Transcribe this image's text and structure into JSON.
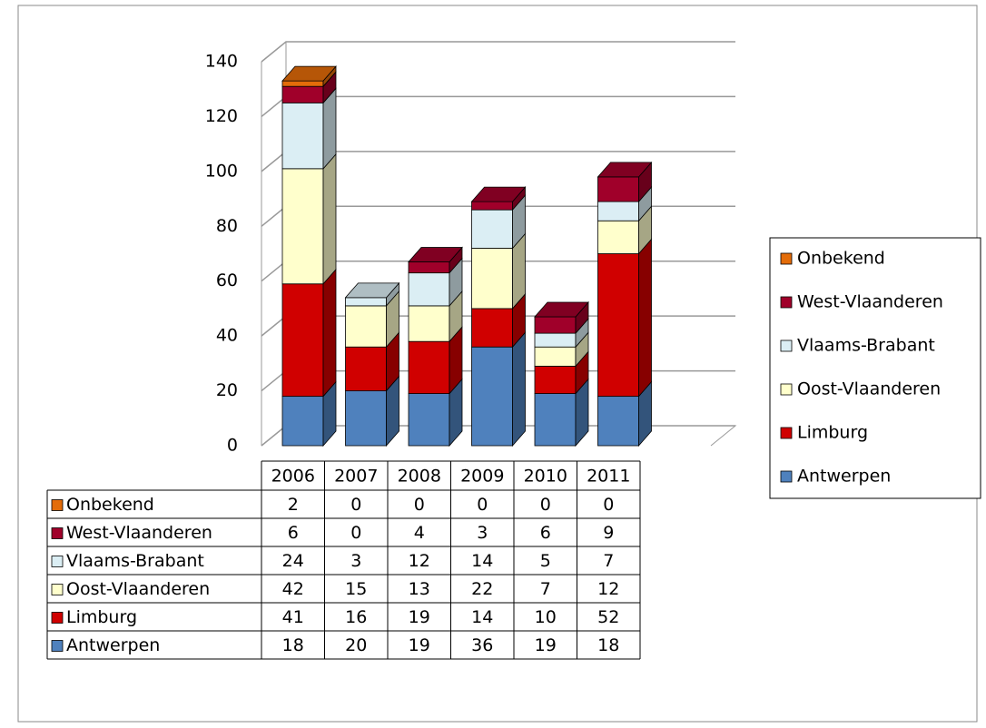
{
  "chart_data": {
    "type": "bar3d-stacked",
    "categories": [
      "2006",
      "2007",
      "2008",
      "2009",
      "2010",
      "2011"
    ],
    "series": [
      {
        "name": "Antwerpen",
        "color": "#4f81bd",
        "values": [
          18,
          20,
          19,
          36,
          19,
          18
        ]
      },
      {
        "name": "Limburg",
        "color": "#d00000",
        "values": [
          41,
          16,
          19,
          14,
          10,
          52
        ]
      },
      {
        "name": "Oost-Vlaanderen",
        "color": "#ffffcc",
        "values": [
          42,
          15,
          13,
          22,
          7,
          12
        ]
      },
      {
        "name": "Vlaams-Brabant",
        "color": "#dbeef4",
        "values": [
          24,
          3,
          12,
          14,
          5,
          7
        ]
      },
      {
        "name": "West-Vlaanderen",
        "color": "#a0002a",
        "values": [
          6,
          0,
          4,
          3,
          6,
          9
        ]
      },
      {
        "name": "Onbekend",
        "color": "#e36c09",
        "values": [
          2,
          0,
          0,
          0,
          0,
          0
        ]
      }
    ],
    "ylim": [
      0,
      140
    ],
    "yticks": [
      0,
      20,
      40,
      60,
      80,
      100,
      120,
      140
    ],
    "grid": true,
    "legend": "right"
  }
}
